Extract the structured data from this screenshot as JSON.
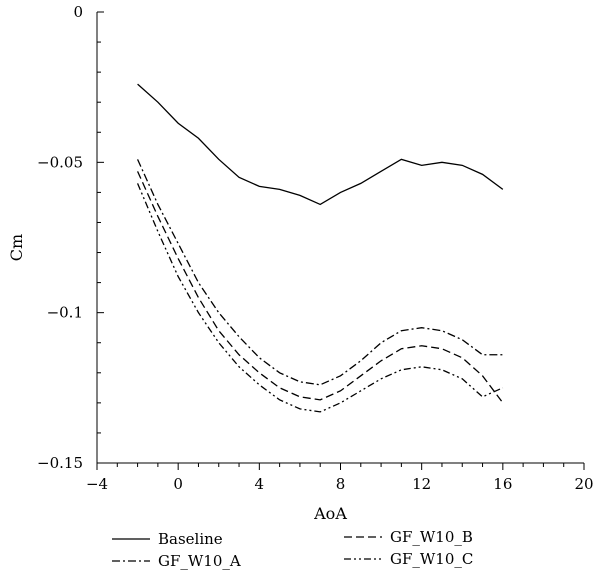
{
  "chart_data": {
    "type": "line",
    "xlabel": "AoA",
    "ylabel": "Cm",
    "xlim": [
      -4,
      20
    ],
    "ylim": [
      -0.15,
      0
    ],
    "xticks": [
      -4,
      0,
      4,
      8,
      12,
      16,
      20
    ],
    "xtick_labels": [
      "−4",
      "0",
      "4",
      "8",
      "12",
      "16",
      "20"
    ],
    "yticks": [
      0,
      -0.05,
      -0.1,
      -0.15
    ],
    "ytick_labels": [
      "0",
      "−0.05",
      "−0.1",
      "−0.15"
    ],
    "grid": false,
    "legend_position": "bottom",
    "series": [
      {
        "name": "Baseline",
        "dash": "solid",
        "x": [
          -2,
          -1,
          0,
          1,
          2,
          3,
          4,
          5,
          6,
          7,
          8,
          9,
          10,
          11,
          12,
          13,
          14,
          15,
          16
        ],
        "y": [
          -0.024,
          -0.03,
          -0.037,
          -0.042,
          -0.049,
          -0.055,
          -0.058,
          -0.059,
          -0.061,
          -0.064,
          -0.06,
          -0.057,
          -0.053,
          -0.049,
          -0.051,
          -0.05,
          -0.051,
          -0.054,
          -0.059
        ]
      },
      {
        "name": "GF_W10_A",
        "dash": "dashdot",
        "x": [
          -2,
          -1,
          0,
          1,
          2,
          3,
          4,
          5,
          6,
          7,
          8,
          9,
          10,
          11,
          12,
          13,
          14,
          15,
          16
        ],
        "y": [
          -0.049,
          -0.064,
          -0.077,
          -0.09,
          -0.1,
          -0.108,
          -0.115,
          -0.12,
          -0.123,
          -0.124,
          -0.121,
          -0.116,
          -0.11,
          -0.106,
          -0.105,
          -0.106,
          -0.109,
          -0.114,
          -0.114
        ]
      },
      {
        "name": "GF_W10_B",
        "dash": "dash",
        "x": [
          -2,
          -1,
          0,
          1,
          2,
          3,
          4,
          5,
          6,
          7,
          8,
          9,
          10,
          11,
          12,
          13,
          14,
          15,
          16
        ],
        "y": [
          -0.053,
          -0.068,
          -0.082,
          -0.095,
          -0.106,
          -0.114,
          -0.12,
          -0.125,
          -0.128,
          -0.129,
          -0.126,
          -0.121,
          -0.116,
          -0.112,
          -0.111,
          -0.112,
          -0.115,
          -0.121,
          -0.13
        ]
      },
      {
        "name": "GF_W10_C",
        "dash": "dashdotdot",
        "x": [
          -2,
          -1,
          0,
          1,
          2,
          3,
          4,
          5,
          6,
          7,
          8,
          9,
          10,
          11,
          12,
          13,
          14,
          15,
          16
        ],
        "y": [
          -0.057,
          -0.073,
          -0.088,
          -0.1,
          -0.11,
          -0.118,
          -0.124,
          -0.129,
          -0.132,
          -0.133,
          -0.13,
          -0.126,
          -0.122,
          -0.119,
          -0.118,
          -0.119,
          -0.122,
          -0.128,
          -0.125
        ]
      }
    ]
  }
}
